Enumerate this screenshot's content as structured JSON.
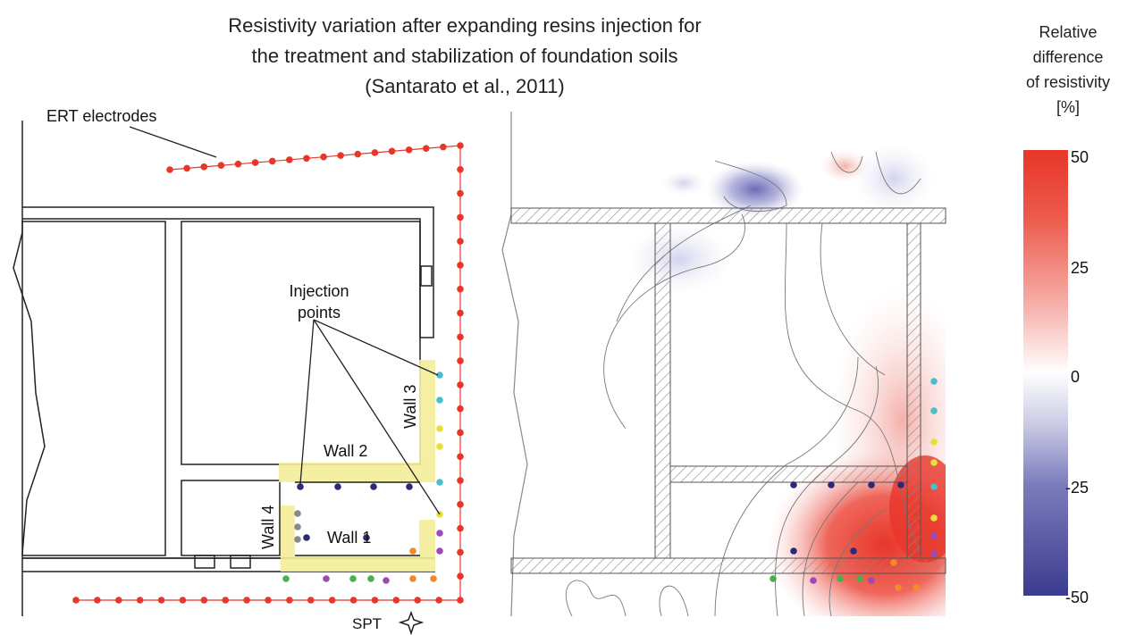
{
  "title": {
    "line1": "Resistivity variation after expanding resins injection for",
    "line2": "the treatment and stabilization of foundation soils",
    "line3": "(Santarato et al., 2011)"
  },
  "colorbar": {
    "title_lines": [
      "Relative",
      "difference",
      "of resistivity",
      "[%]"
    ],
    "ticks": [
      "50",
      "25",
      "0",
      "-25",
      "-50"
    ],
    "range": [
      -50,
      50
    ],
    "colors": {
      "max": "#e8362a",
      "mid": "#ffffff",
      "min": "#3b3b8f"
    }
  },
  "labels": {
    "ert": "ERT electrodes",
    "injection": "Injection points",
    "injection_line1": "Injection",
    "injection_line2": "points",
    "wall1": "Wall 1",
    "wall2": "Wall 2",
    "wall3": "Wall 3",
    "wall4": "Wall 4",
    "spt": "SPT"
  },
  "colors": {
    "electrode": "#e8362a",
    "wall_highlight": "#f3ee9a",
    "injection": [
      "#4bbfc9",
      "#e8e03a",
      "#2b2a7a",
      "#9a4bb5",
      "#4bb04b",
      "#f08a2a",
      "#888888"
    ]
  }
}
